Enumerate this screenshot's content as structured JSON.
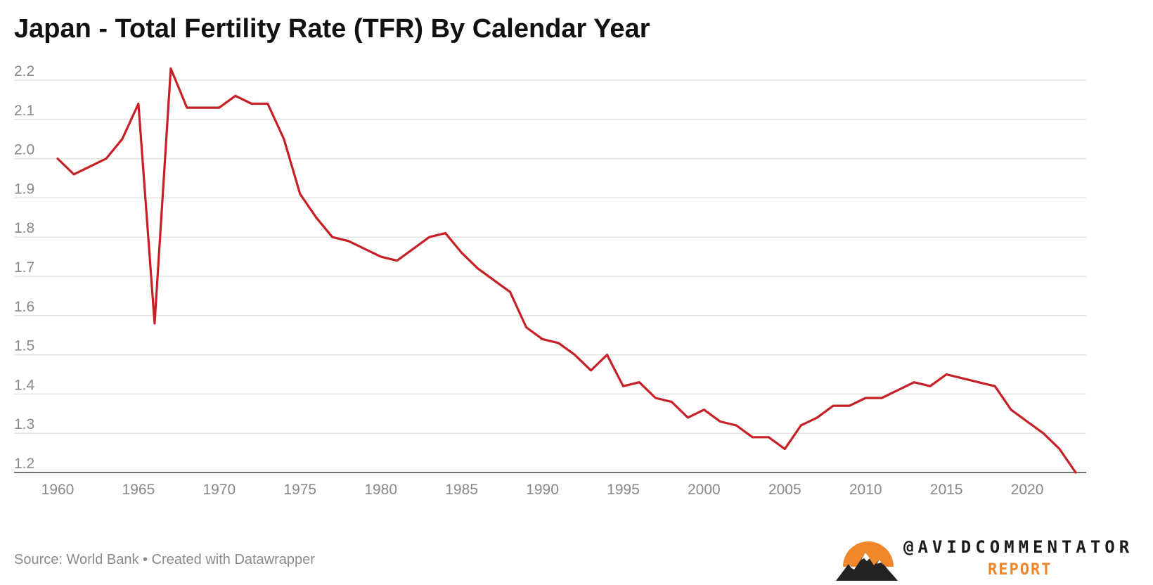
{
  "chart_data": {
    "type": "line",
    "title": "Japan - Total Fertility Rate (TFR) By Calendar Year",
    "xlabel": "",
    "ylabel": "",
    "xlim": [
      1960,
      2023
    ],
    "ylim": [
      1.2,
      2.2
    ],
    "yticks": [
      "1.2",
      "1.3",
      "1.4",
      "1.5",
      "1.6",
      "1.7",
      "1.8",
      "1.9",
      "2.0",
      "2.1",
      "2.2"
    ],
    "xticks": [
      "1960",
      "1965",
      "1970",
      "1975",
      "1980",
      "1985",
      "1990",
      "1995",
      "2000",
      "2005",
      "2010",
      "2015",
      "2020"
    ],
    "grid": true,
    "line_color": "#c62026",
    "series": [
      {
        "name": "TFR",
        "x": [
          1960,
          1961,
          1962,
          1963,
          1964,
          1965,
          1966,
          1967,
          1968,
          1969,
          1970,
          1971,
          1972,
          1973,
          1974,
          1975,
          1976,
          1977,
          1978,
          1979,
          1980,
          1981,
          1982,
          1983,
          1984,
          1985,
          1986,
          1987,
          1988,
          1989,
          1990,
          1991,
          1992,
          1993,
          1994,
          1995,
          1996,
          1997,
          1998,
          1999,
          2000,
          2001,
          2002,
          2003,
          2004,
          2005,
          2006,
          2007,
          2008,
          2009,
          2010,
          2011,
          2012,
          2013,
          2014,
          2015,
          2016,
          2017,
          2018,
          2019,
          2020,
          2021,
          2022,
          2023
        ],
        "values": [
          2.0,
          1.96,
          1.98,
          2.0,
          2.05,
          2.14,
          1.58,
          2.23,
          2.13,
          2.13,
          2.13,
          2.16,
          2.14,
          2.14,
          2.05,
          1.91,
          1.85,
          1.8,
          1.79,
          1.77,
          1.75,
          1.74,
          1.77,
          1.8,
          1.81,
          1.76,
          1.72,
          1.69,
          1.66,
          1.57,
          1.54,
          1.53,
          1.5,
          1.46,
          1.5,
          1.42,
          1.43,
          1.39,
          1.38,
          1.34,
          1.36,
          1.33,
          1.32,
          1.29,
          1.29,
          1.26,
          1.32,
          1.34,
          1.37,
          1.37,
          1.39,
          1.39,
          1.41,
          1.43,
          1.42,
          1.45,
          1.44,
          1.43,
          1.42,
          1.36,
          1.33,
          1.3,
          1.26,
          1.2
        ]
      }
    ]
  },
  "footer": {
    "source": "Source: World Bank • Created with Datawrapper"
  },
  "brand": {
    "handle": "@AVIDCOMMENTATOR",
    "report": "REPORT",
    "accent_color": "#f0872a"
  }
}
